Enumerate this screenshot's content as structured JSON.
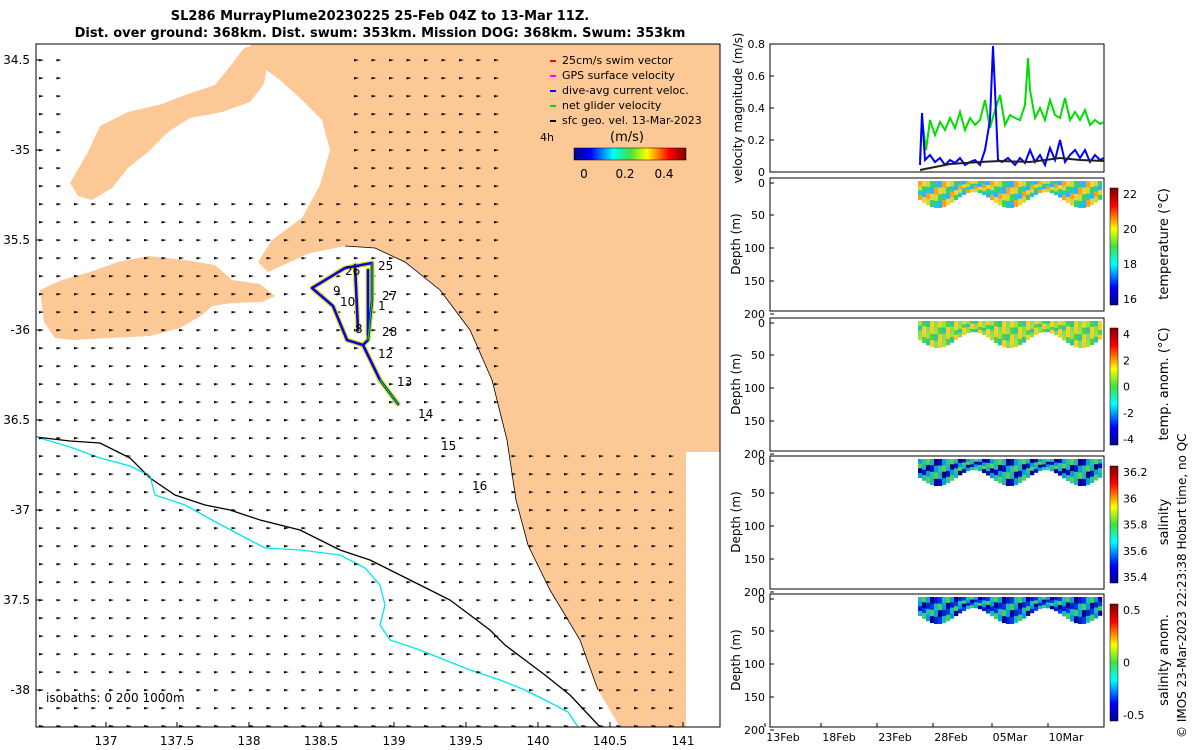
{
  "title": {
    "line1": "SL286 MurrayPlume20230225 25-Feb 04Z to 13-Mar 11Z.",
    "line2": "Dist. over ground: 368km. Dist. swum: 353km. Mission DOG: 368km. Swum: 353km"
  },
  "map": {
    "lon_ticks": [
      "137",
      "137.5",
      "138",
      "138.5",
      "139",
      "139.5",
      "140",
      "140.5",
      "141"
    ],
    "lat_ticks": [
      "34.5",
      "-35",
      "35.5",
      "-36",
      "36.5",
      "-37",
      "37.5",
      "-38"
    ],
    "legend": [
      {
        "label": "25cm/s swim vector",
        "color": "#ff0000"
      },
      {
        "label": "GPS surface velocity",
        "color": "#ff00ff"
      },
      {
        "label": "dive-avg current veloc.",
        "color": "#0000ff"
      },
      {
        "label": "net glider velocity",
        "color": "#00dd00"
      },
      {
        "label": "sfc geo. vel. 13-Mar-2023",
        "color": "#000000"
      }
    ],
    "colorbar_unit": "(m/s)",
    "colorbar_interval": "4h",
    "colorbar_ticks": [
      "0",
      "0.2",
      "0.4"
    ],
    "isobaths_label": "isobaths: 0   200  1000m",
    "day_labels": [
      "25",
      "26",
      "27",
      "1",
      "9",
      "10",
      "8",
      "28",
      "12",
      "13",
      "14",
      "15",
      "16"
    ],
    "land_color": "#fcc896"
  },
  "panels": {
    "velocity": {
      "ylabel": "velocity magnitude (m/s)",
      "yticks": [
        "0",
        "0.2",
        "0.4",
        "0.6",
        "0.8"
      ]
    },
    "temperature": {
      "ylabel": "temperature (°C)",
      "cbar": [
        "22",
        "20",
        "18",
        "16"
      ]
    },
    "temp_anom": {
      "ylabel": "temp. anom. (°C)",
      "cbar": [
        "4",
        "2",
        "0",
        "-2",
        "-4"
      ]
    },
    "salinity": {
      "ylabel": "salinity",
      "cbar": [
        "36.2",
        "36",
        "35.8",
        "35.6",
        "35.4"
      ]
    },
    "sal_anom": {
      "ylabel": "salinity anom.",
      "cbar": [
        "0.5",
        "0",
        "-0.5"
      ]
    },
    "depth_label": "Depth (m)",
    "depth_ticks": [
      "0",
      "50",
      "100",
      "150",
      "200"
    ],
    "time_ticks": [
      "13Feb",
      "18Feb",
      "23Feb",
      "28Feb",
      "05Mar",
      "10Mar"
    ]
  },
  "footer": "© IMOS 23-Mar-2023 22:23:38 Hobart time, no QC"
}
